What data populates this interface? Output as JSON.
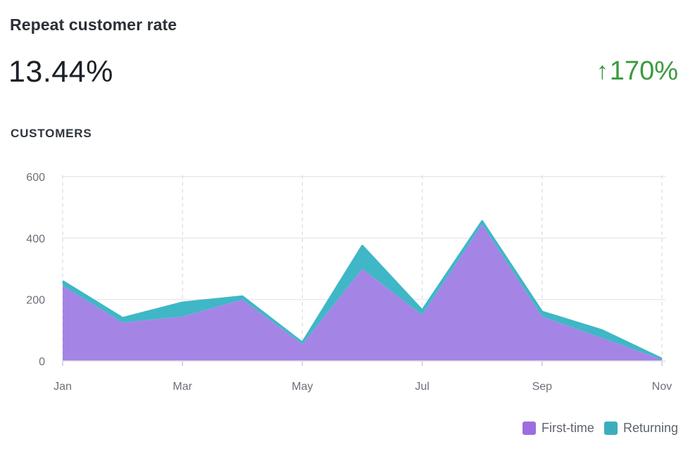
{
  "header": {
    "title": "Repeat customer rate",
    "value": "13.44%",
    "change_arrow": "↑",
    "change_value": "170%",
    "change_color": "#3a9a3f"
  },
  "section_label": "CUSTOMERS",
  "colors": {
    "first_time": "#a485e6",
    "returning": "#3fb7c6",
    "first_time_swatch": "#9b6ee0",
    "returning_swatch": "#3aaebd"
  },
  "chart_data": {
    "type": "area",
    "stacked": true,
    "title": "CUSTOMERS",
    "x": [
      "Jan",
      "Feb",
      "Mar",
      "Apr",
      "May",
      "Jun",
      "Jul",
      "Aug",
      "Sep",
      "Oct",
      "Nov"
    ],
    "x_tick_labels": [
      "Jan",
      "Mar",
      "May",
      "Jul",
      "Sep",
      "Nov"
    ],
    "y_ticks": [
      0,
      200,
      400,
      600
    ],
    "ylim": [
      0,
      600
    ],
    "grid": true,
    "legend_position": "bottom-right",
    "series": [
      {
        "name": "First-time",
        "values": [
          245,
          125,
          145,
          200,
          55,
          300,
          150,
          445,
          145,
          75,
          5
        ]
      },
      {
        "name": "Returning",
        "values": [
          15,
          15,
          45,
          10,
          5,
          75,
          15,
          10,
          15,
          25,
          2
        ]
      }
    ]
  }
}
